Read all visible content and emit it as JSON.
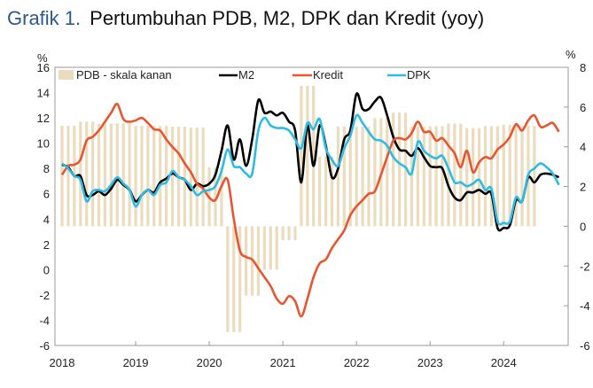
{
  "title": {
    "number": "Grafik 1.",
    "text": "Pertumbuhan PDB, M2, DPK dan Kredit (yoy)"
  },
  "chart_data": {
    "type": "line",
    "title": "Grafik 1. Pertumbuhan PDB, M2, DPK dan Kredit (yoy)",
    "left_unit": "%",
    "right_unit": "%",
    "ylim": [
      -6,
      16
    ],
    "yticks": [
      "16",
      "14",
      "12",
      "10",
      "8",
      "6",
      "4",
      "2",
      "0",
      "-2",
      "-4",
      "-6"
    ],
    "ylim_right": [
      -6,
      8
    ],
    "yticks_right": [
      "8",
      "6",
      "4",
      "2",
      "0",
      "-2",
      "-4",
      "-6"
    ],
    "xticks": [
      "2018",
      "2019",
      "2020",
      "2021",
      "2022",
      "2023",
      "2024"
    ],
    "x_start": "2018-01",
    "x_frequency": "monthly",
    "legend_position": "top",
    "grid": false,
    "colors": {
      "PDB": "#eadcbc",
      "M2": "#000000",
      "Kredit": "#e8552f",
      "DPK": "#2dbbe6"
    },
    "bars": {
      "name": "PDB - skala kanan",
      "axis": "right",
      "frequency": "quarterly",
      "quarters": [
        "2018Q1",
        "2018Q2",
        "2018Q3",
        "2018Q4",
        "2019Q1",
        "2019Q2",
        "2019Q3",
        "2019Q4",
        "2020Q1",
        "2020Q2",
        "2020Q3",
        "2020Q4",
        "2021Q1",
        "2021Q2",
        "2021Q3",
        "2021Q4",
        "2022Q1",
        "2022Q2",
        "2022Q3",
        "2022Q4",
        "2023Q1",
        "2023Q2",
        "2023Q3",
        "2023Q4",
        "2024Q1",
        "2024Q2"
      ],
      "values": [
        5.06,
        5.27,
        5.17,
        5.18,
        5.06,
        5.05,
        5.01,
        4.96,
        2.97,
        -5.32,
        -3.49,
        -2.19,
        -0.7,
        7.07,
        3.51,
        5.02,
        5.01,
        5.44,
        5.72,
        5.01,
        5.04,
        5.17,
        4.94,
        5.04,
        5.11,
        5.05
      ]
    },
    "series": [
      {
        "name": "M2",
        "axis": "left",
        "values": [
          8.3,
          8.1,
          7.4,
          7.4,
          5.9,
          5.9,
          6.2,
          5.9,
          6.4,
          7.1,
          6.7,
          6.3,
          5.4,
          5.9,
          6.3,
          6.1,
          6.9,
          7.2,
          7.6,
          7.3,
          7.1,
          6.3,
          6.8,
          6.6,
          6.8,
          7.5,
          9.4,
          11.4,
          8.7,
          10.3,
          8.2,
          10.3,
          13.4,
          12.4,
          12.5,
          12.2,
          12.4,
          11.7,
          11.0,
          6.9,
          11.4,
          8.2,
          11.4,
          9.8,
          7.3,
          8.0,
          10.3,
          11.0,
          13.9,
          12.7,
          12.7,
          13.3,
          13.6,
          12.2,
          10.5,
          9.5,
          9.4,
          9.0,
          9.6,
          8.9,
          8.2,
          8.1,
          8.0,
          6.6,
          5.7,
          5.5,
          6.1,
          6.1,
          6.3,
          6.0,
          6.0,
          3.3,
          3.3,
          3.5,
          5.5,
          5.4,
          7.3,
          6.9,
          7.5,
          7.6,
          7.5,
          7.3
        ]
      },
      {
        "name": "Kredit",
        "axis": "left",
        "values": [
          7.5,
          8.2,
          8.3,
          8.7,
          10.2,
          10.5,
          11.0,
          11.7,
          12.4,
          13.1,
          11.9,
          11.7,
          11.8,
          12.0,
          11.6,
          11.1,
          11.0,
          10.3,
          9.7,
          9.2,
          8.4,
          7.7,
          6.8,
          6.4,
          5.7,
          5.5,
          6.6,
          7.1,
          4.0,
          1.5,
          1.0,
          0.8,
          0.1,
          -0.6,
          -1.3,
          -2.3,
          -2.7,
          -2.1,
          -2.5,
          -3.7,
          -2.3,
          -0.6,
          0.5,
          0.8,
          1.7,
          2.4,
          3.1,
          4.3,
          5.0,
          5.5,
          6.0,
          6.2,
          7.5,
          8.9,
          10.2,
          10.4,
          10.3,
          10.8,
          11.7,
          10.9,
          10.9,
          10.2,
          10.4,
          9.8,
          9.2,
          8.1,
          9.4,
          7.7,
          8.5,
          8.9,
          8.8,
          9.5,
          9.9,
          10.5,
          11.5,
          11.0,
          11.8,
          12.2,
          11.3,
          11.4,
          11.6,
          10.9
        ]
      },
      {
        "name": "DPK",
        "axis": "left",
        "values": [
          8.4,
          8.0,
          7.4,
          7.1,
          5.4,
          6.2,
          6.3,
          6.2,
          6.7,
          7.3,
          6.8,
          6.3,
          5.0,
          5.9,
          6.3,
          5.9,
          6.7,
          6.9,
          7.8,
          7.3,
          7.1,
          6.6,
          5.9,
          6.2,
          6.3,
          6.6,
          7.8,
          9.5,
          8.2,
          8.1,
          7.6,
          7.6,
          11.0,
          12.0,
          11.4,
          11.2,
          11.2,
          11.0,
          10.3,
          9.6,
          11.6,
          11.1,
          11.9,
          9.6,
          8.7,
          8.2,
          9.6,
          10.6,
          12.2,
          11.6,
          10.9,
          10.3,
          10.2,
          9.8,
          8.9,
          8.4,
          8.1,
          7.6,
          10.1,
          9.4,
          9.0,
          8.8,
          9.0,
          8.0,
          6.9,
          6.9,
          6.6,
          6.8,
          7.1,
          6.3,
          6.4,
          3.8,
          3.7,
          3.8,
          5.7,
          5.4,
          7.5,
          8.0,
          8.4,
          8.1,
          7.6,
          6.7
        ]
      }
    ]
  }
}
